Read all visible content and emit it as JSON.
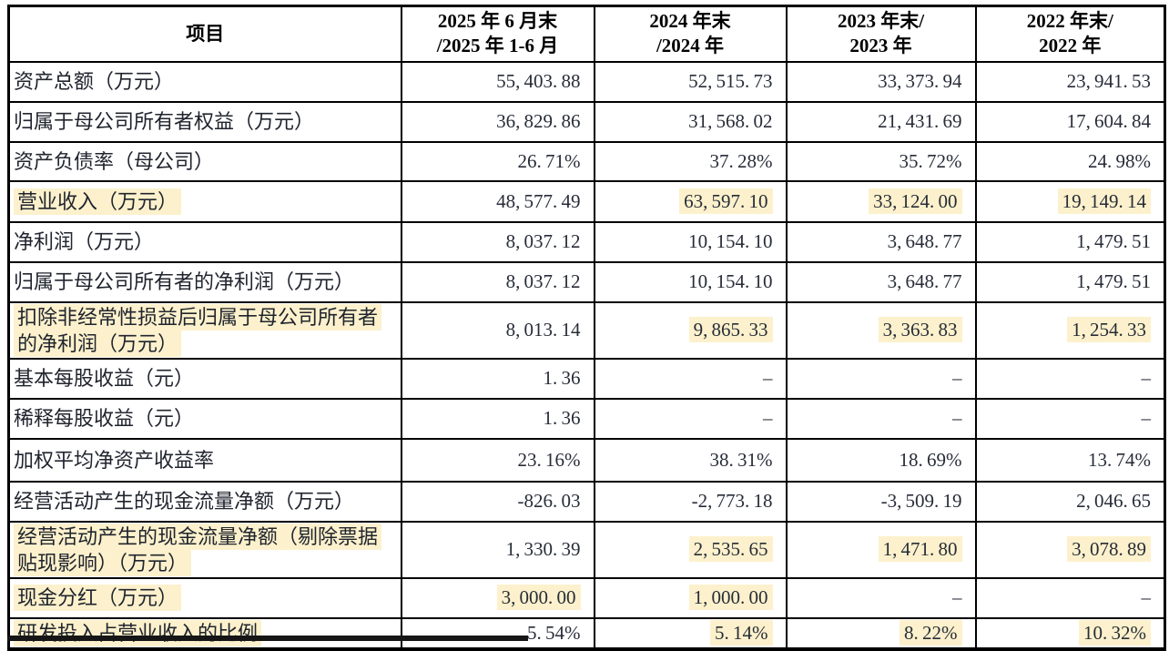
{
  "table": {
    "colors": {
      "highlight": "#FCF1CC",
      "border": "#000000",
      "text": "#20242E"
    },
    "header": {
      "item_col": "项目",
      "period_cols": [
        {
          "line1": "2025 年 6 月末",
          "line2": "/2025 年 1-6 月"
        },
        {
          "line1": "2024 年末",
          "line2": "/2024 年"
        },
        {
          "line1": "2023 年末/",
          "line2": "2023 年"
        },
        {
          "line1": "2022 年末/",
          "line2": "2022 年"
        }
      ]
    },
    "rows": [
      {
        "label": "资产总额（万元）",
        "label_hl": false,
        "h": 44,
        "values": [
          {
            "v": "55,403.88",
            "hl": false
          },
          {
            "v": "52,515.73",
            "hl": false
          },
          {
            "v": "33,373.94",
            "hl": false
          },
          {
            "v": "23,941.53",
            "hl": false
          }
        ]
      },
      {
        "label": "归属于母公司所有者权益（万元）",
        "label_hl": false,
        "h": 44,
        "values": [
          {
            "v": "36,829.86",
            "hl": false
          },
          {
            "v": "31,568.02",
            "hl": false
          },
          {
            "v": "21,431.69",
            "hl": false
          },
          {
            "v": "17,604.84",
            "hl": false
          }
        ]
      },
      {
        "label": "资产负债率（母公司）",
        "label_hl": false,
        "h": 43,
        "values": [
          {
            "v": "26.71%",
            "hl": false
          },
          {
            "v": "37.28%",
            "hl": false
          },
          {
            "v": "35.72%",
            "hl": false
          },
          {
            "v": "24.98%",
            "hl": false
          }
        ]
      },
      {
        "label": "营业收入（万元）",
        "label_hl": true,
        "h": 45,
        "values": [
          {
            "v": "48,577.49",
            "hl": false
          },
          {
            "v": "63,597.10",
            "hl": true
          },
          {
            "v": "33,124.00",
            "hl": true
          },
          {
            "v": "19,149.14",
            "hl": true
          }
        ]
      },
      {
        "label": "净利润（万元）",
        "label_hl": false,
        "h": 44,
        "values": [
          {
            "v": "8,037.12",
            "hl": false
          },
          {
            "v": "10,154.10",
            "hl": false
          },
          {
            "v": "3,648.77",
            "hl": false
          },
          {
            "v": "1,479.51",
            "hl": false
          }
        ]
      },
      {
        "label": "归属于母公司所有者的净利润（万元）",
        "label_hl": false,
        "h": 44,
        "values": [
          {
            "v": "8,037.12",
            "hl": false
          },
          {
            "v": "10,154.10",
            "hl": false
          },
          {
            "v": "3,648.77",
            "hl": false
          },
          {
            "v": "1,479.51",
            "hl": false
          }
        ]
      },
      {
        "label": "扣除非经常性损益后归属于母公司所有者的净利润（万元）",
        "label_hl": true,
        "h": 59,
        "values": [
          {
            "v": "8,013.14",
            "hl": false
          },
          {
            "v": "9,865.33",
            "hl": true
          },
          {
            "v": "3,363.83",
            "hl": true
          },
          {
            "v": "1,254.33",
            "hl": true
          }
        ]
      },
      {
        "label": "基本每股收益（元）",
        "label_hl": false,
        "h": 44,
        "values": [
          {
            "v": "1.36",
            "hl": false
          },
          {
            "v": "–",
            "hl": false
          },
          {
            "v": "–",
            "hl": false
          },
          {
            "v": "–",
            "hl": false
          }
        ]
      },
      {
        "label": "稀释每股收益（元）",
        "label_hl": false,
        "h": 44,
        "values": [
          {
            "v": "1.36",
            "hl": false
          },
          {
            "v": "–",
            "hl": false
          },
          {
            "v": "–",
            "hl": false
          },
          {
            "v": "–",
            "hl": false
          }
        ]
      },
      {
        "label": "加权平均净资产收益率",
        "label_hl": false,
        "h": 47,
        "values": [
          {
            "v": "23.16%",
            "hl": false
          },
          {
            "v": "38.31%",
            "hl": false
          },
          {
            "v": "18.69%",
            "hl": false
          },
          {
            "v": "13.74%",
            "hl": false
          }
        ]
      },
      {
        "label": "经营活动产生的现金流量净额（万元）",
        "label_hl": false,
        "h": 44,
        "values": [
          {
            "v": "-826.03",
            "hl": false
          },
          {
            "v": "-2,773.18",
            "hl": false
          },
          {
            "v": "-3,509.19",
            "hl": false
          },
          {
            "v": "2,046.65",
            "hl": false
          }
        ]
      },
      {
        "label": "经营活动产生的现金流量净额（剔除票据贴现影响）（万元）",
        "label_hl": true,
        "h": 59,
        "values": [
          {
            "v": "1,330.39",
            "hl": false
          },
          {
            "v": "2,535.65",
            "hl": true
          },
          {
            "v": "1,471.80",
            "hl": true
          },
          {
            "v": "3,078.89",
            "hl": true
          }
        ]
      },
      {
        "label": "现金分红（万元）",
        "label_hl": true,
        "h": 44,
        "values": [
          {
            "v": "3,000.00",
            "hl": true
          },
          {
            "v": "1,000.00",
            "hl": true
          },
          {
            "v": "–",
            "hl": false
          },
          {
            "v": "–",
            "hl": false
          }
        ]
      },
      {
        "label": "研发投入占营业收入的比例",
        "label_hl": true,
        "h": 33,
        "values": [
          {
            "v": "5.54%",
            "hl": false
          },
          {
            "v": "5.14%",
            "hl": true
          },
          {
            "v": "8.22%",
            "hl": true
          },
          {
            "v": "10.32%",
            "hl": true
          }
        ]
      }
    ]
  }
}
